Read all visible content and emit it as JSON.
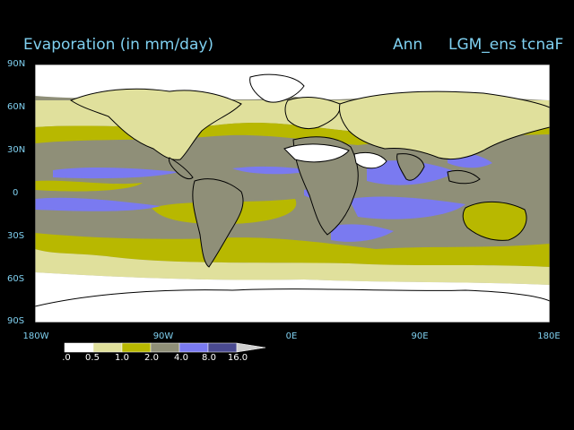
{
  "title": {
    "left": "Evaporation (in mm/day)",
    "season": "Ann",
    "run": "LGM_ens tcnaF"
  },
  "y_axis": {
    "ticks": [
      "90N",
      "60N",
      "30N",
      "0",
      "30S",
      "60S",
      "90S"
    ]
  },
  "x_axis": {
    "ticks": [
      "180W",
      "90W",
      "0E",
      "90E",
      "180E"
    ]
  },
  "colorbar": {
    "levels": [
      ".0",
      "0.5",
      "1.0",
      "2.0",
      "4.0",
      "8.0",
      "16.0"
    ],
    "colors": [
      "#ffffff",
      "#e0e09c",
      "#b8b800",
      "#8f8f78",
      "#7a7af0",
      "#4a4a90",
      "#d0d0d0"
    ]
  },
  "map_colors": {
    "ocean_background": "#8f8f78",
    "coastline": "#000000",
    "land": "#ffffff"
  }
}
